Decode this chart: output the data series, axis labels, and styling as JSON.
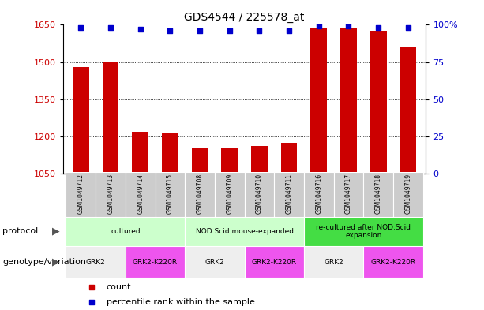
{
  "title": "GDS4544 / 225578_at",
  "samples": [
    "GSM1049712",
    "GSM1049713",
    "GSM1049714",
    "GSM1049715",
    "GSM1049708",
    "GSM1049709",
    "GSM1049710",
    "GSM1049711",
    "GSM1049716",
    "GSM1049717",
    "GSM1049718",
    "GSM1049719"
  ],
  "counts": [
    1480,
    1500,
    1218,
    1212,
    1155,
    1153,
    1163,
    1175,
    1635,
    1635,
    1625,
    1560
  ],
  "percentile_ranks": [
    98,
    98,
    97,
    96,
    96,
    96,
    96,
    96,
    99,
    99,
    98,
    98
  ],
  "ylim_left": [
    1050,
    1650
  ],
  "ylim_right": [
    0,
    100
  ],
  "yticks_left": [
    1050,
    1200,
    1350,
    1500,
    1650
  ],
  "yticks_right": [
    0,
    25,
    50,
    75,
    100
  ],
  "bar_color": "#cc0000",
  "dot_color": "#0000cc",
  "protocol_row": {
    "label": "protocol",
    "groups": [
      {
        "text": "cultured",
        "span": [
          0,
          3
        ],
        "color": "#ccffcc"
      },
      {
        "text": "NOD.Scid mouse-expanded",
        "span": [
          4,
          7
        ],
        "color": "#ccffcc"
      },
      {
        "text": "re-cultured after NOD.Scid\nexpansion",
        "span": [
          8,
          11
        ],
        "color": "#44dd44"
      }
    ]
  },
  "genotype_row": {
    "label": "genotype/variation",
    "groups": [
      {
        "text": "GRK2",
        "span": [
          0,
          1
        ],
        "color": "#eeeeee"
      },
      {
        "text": "GRK2-K220R",
        "span": [
          2,
          3
        ],
        "color": "#ee55ee"
      },
      {
        "text": "GRK2",
        "span": [
          4,
          5
        ],
        "color": "#eeeeee"
      },
      {
        "text": "GRK2-K220R",
        "span": [
          6,
          7
        ],
        "color": "#ee55ee"
      },
      {
        "text": "GRK2",
        "span": [
          8,
          9
        ],
        "color": "#eeeeee"
      },
      {
        "text": "GRK2-K220R",
        "span": [
          10,
          11
        ],
        "color": "#ee55ee"
      }
    ]
  },
  "legend": [
    {
      "label": "count",
      "color": "#cc0000"
    },
    {
      "label": "percentile rank within the sample",
      "color": "#0000cc"
    }
  ]
}
